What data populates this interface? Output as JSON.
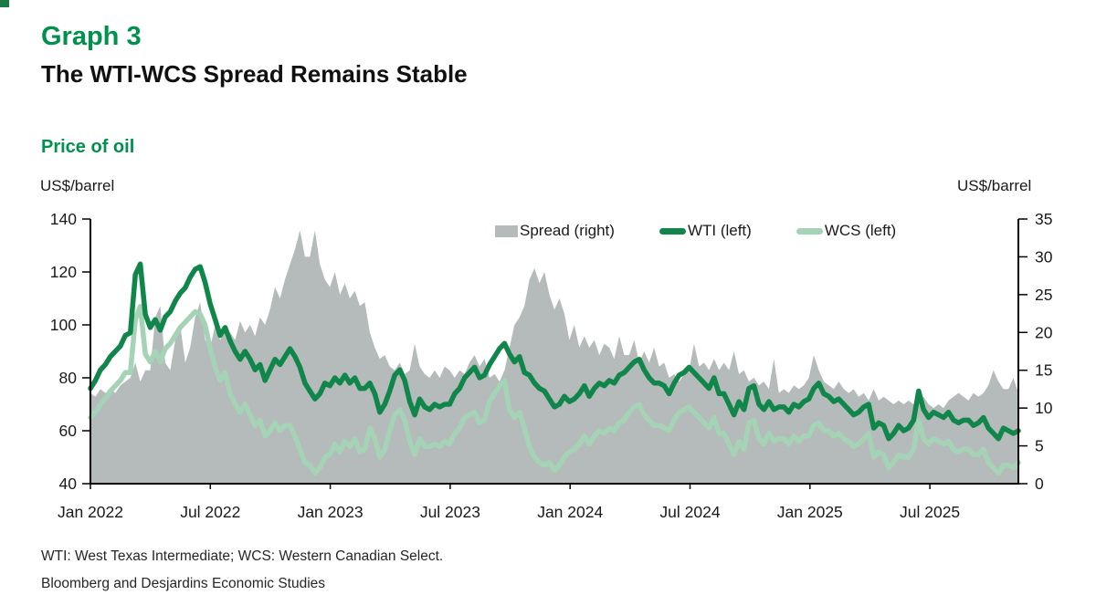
{
  "page": {
    "graph_label": "Graph 3",
    "title": "The WTI-WCS Spread Remains Stable",
    "chart_heading": "Price of oil",
    "unit_left": "US$/barrel",
    "unit_right": "US$/barrel",
    "footnote1": "WTI: West Texas Intermediate; WCS: Western Canadian Select.",
    "footnote2": "Bloomberg and Desjardins Economic Studies"
  },
  "colors": {
    "heading_green": "#00914C",
    "wti_green": "#11864A",
    "wcs_light_green": "#A5D3B5",
    "spread_gray": "#B5BABA",
    "axis_black": "#000000",
    "corner_green": "#1b7a44"
  },
  "chart_data": {
    "type": "line",
    "title": "Price of oil",
    "subtitle": "The WTI-WCS Spread Remains Stable",
    "x_unit": "months since Jan 2022, 4 samples per month, Jan 2022 to mid-Nov 2025",
    "x_tick_labels": [
      "Jan 2022",
      "Jul 2022",
      "Jan 2023",
      "Jul 2023",
      "Jan 2024",
      "Jul 2024",
      "Jan 2025",
      "Jul 2025"
    ],
    "left_axis": {
      "label": "US$/barrel",
      "ticks": [
        140,
        120,
        100,
        80,
        60,
        40
      ],
      "min": 40,
      "max": 140
    },
    "right_axis": {
      "label": "US$/barrel",
      "ticks": [
        35,
        30,
        25,
        20,
        15,
        10,
        5,
        0
      ],
      "min": 0,
      "max": 35
    },
    "grid": false,
    "legend_position": "top-inside",
    "series": [
      {
        "name": "Spread (right)",
        "axis": "right",
        "type": "area",
        "color": "#B5BABA",
        "values": [
          12,
          11.5,
          12.5,
          12,
          12.5,
          12,
          13,
          13.5,
          14,
          16,
          13.5,
          15,
          15,
          22,
          23.5,
          16,
          15,
          19,
          21,
          16,
          18,
          22,
          24,
          19,
          18,
          21,
          19,
          20,
          20,
          19,
          21.5,
          20,
          21,
          19.5,
          22,
          21,
          23,
          26,
          24.5,
          27,
          29,
          31,
          33.5,
          30,
          30,
          33.5,
          29,
          27,
          26,
          28,
          25,
          26.5,
          24.5,
          25.5,
          23.5,
          24,
          20,
          18,
          16.5,
          17,
          15.5,
          15,
          16,
          14.5,
          15,
          18.5,
          15.5,
          14.5,
          14,
          15,
          14,
          15.5,
          15,
          14,
          15,
          14.5,
          16,
          17,
          15.5,
          16.5,
          14,
          14.5,
          13.5,
          15,
          18,
          21,
          22,
          23.5,
          27,
          28.5,
          26.5,
          28,
          25,
          23,
          24.5,
          22.5,
          19,
          21,
          18,
          19.5,
          18,
          19,
          17,
          18.5,
          18,
          16.5,
          19.5,
          17,
          17,
          19,
          16,
          17.5,
          16,
          18,
          15.5,
          16,
          14,
          14.5,
          13.5,
          14.5,
          15,
          18.5,
          15.5,
          16,
          15,
          16.5,
          15,
          16,
          15,
          17.5,
          14.5,
          15,
          13.5,
          14,
          13,
          13.5,
          12.5,
          16.5,
          12,
          12.5,
          12,
          13,
          12.5,
          13,
          14,
          17,
          15,
          13.5,
          13,
          12.5,
          13.5,
          12.5,
          12,
          12.5,
          11.5,
          12,
          11,
          12.5,
          11,
          11.5,
          11,
          10.5,
          11,
          10.5,
          11,
          10.5,
          11,
          11.5,
          10.5,
          10,
          10.5,
          10,
          11,
          11.5,
          12,
          11.5,
          11,
          12,
          11.5,
          12,
          13,
          15,
          13.5,
          12.5,
          12.5,
          14,
          12
        ]
      },
      {
        "name": "WTI (left)",
        "axis": "left",
        "type": "line",
        "color": "#11864A",
        "values": [
          76,
          79,
          83,
          85,
          88,
          90,
          92,
          96,
          97,
          119,
          123,
          104,
          99,
          102,
          98,
          103,
          105,
          109,
          112,
          114,
          118,
          121,
          122,
          116,
          108,
          102,
          96,
          99,
          94,
          90,
          87,
          90,
          87,
          83,
          85,
          79,
          83,
          87,
          85,
          88,
          91,
          88,
          84,
          78,
          75,
          72,
          74,
          78,
          77,
          80,
          78,
          81,
          78,
          80,
          76,
          76,
          78,
          74,
          67,
          70,
          75,
          81,
          83,
          79,
          71,
          66,
          72,
          69,
          68,
          70,
          69,
          70,
          70,
          74,
          76,
          80,
          82,
          84,
          80,
          81,
          85,
          88,
          91,
          93,
          89,
          86,
          88,
          82,
          81,
          78,
          76,
          75,
          72,
          69,
          70,
          73,
          71,
          72,
          74,
          77,
          73,
          76,
          78,
          77,
          79,
          78,
          81,
          82,
          84,
          86,
          87,
          83,
          80,
          78,
          78,
          77,
          74,
          78,
          81,
          82,
          84,
          82,
          80,
          78,
          76,
          80,
          74,
          74,
          70,
          66,
          71,
          68,
          76,
          77,
          70,
          68,
          71,
          68,
          69,
          69,
          67,
          70,
          69,
          71,
          72,
          76,
          78,
          74,
          73,
          71,
          72,
          70,
          68,
          66,
          67,
          69,
          70,
          61,
          63,
          62,
          57,
          59,
          62,
          60,
          61,
          64,
          75,
          68,
          65,
          67,
          66,
          65,
          67,
          64,
          63,
          64,
          64,
          62,
          63,
          65,
          61,
          59,
          57,
          61,
          60,
          59,
          60
        ]
      },
      {
        "name": "WCS (left)",
        "axis": "left",
        "type": "line",
        "color": "#A5D3B5",
        "values": [
          65,
          67,
          70,
          72,
          75,
          77,
          79,
          82,
          82,
          102,
          107,
          89,
          86,
          90,
          86,
          91,
          93,
          96,
          99,
          101,
          103,
          105,
          104,
          100,
          91,
          84,
          79,
          82,
          74,
          70,
          67,
          70,
          66,
          62,
          64,
          58,
          60,
          63,
          60,
          62,
          62,
          58,
          53,
          48,
          47,
          44,
          46,
          50,
          51,
          55,
          52,
          56,
          54,
          57,
          52,
          53,
          61,
          57,
          50,
          53,
          60,
          66,
          68,
          64,
          56,
          51,
          57,
          54,
          54,
          55,
          54,
          56,
          55,
          59,
          61,
          65,
          66,
          67,
          63,
          64,
          71,
          74,
          77,
          79,
          68,
          65,
          67,
          61,
          54,
          50,
          48,
          47,
          48,
          45,
          47,
          50,
          52,
          53,
          55,
          58,
          55,
          58,
          60,
          59,
          61,
          60,
          63,
          64,
          67,
          69,
          70,
          66,
          64,
          62,
          62,
          61,
          60,
          64,
          67,
          68,
          69,
          67,
          65,
          63,
          61,
          65,
          59,
          59,
          55,
          51,
          56,
          53,
          63,
          64,
          57,
          55,
          59,
          56,
          57,
          57,
          55,
          58,
          56,
          58,
          58,
          62,
          63,
          60,
          60,
          58,
          59,
          57,
          56,
          54,
          55,
          57,
          59,
          50,
          52,
          51,
          46,
          48,
          51,
          50,
          50,
          53,
          64,
          57,
          55,
          57,
          56,
          55,
          56,
          53,
          52,
          53,
          53,
          51,
          51,
          53,
          48,
          46,
          44,
          47,
          47,
          46,
          48
        ]
      }
    ]
  }
}
